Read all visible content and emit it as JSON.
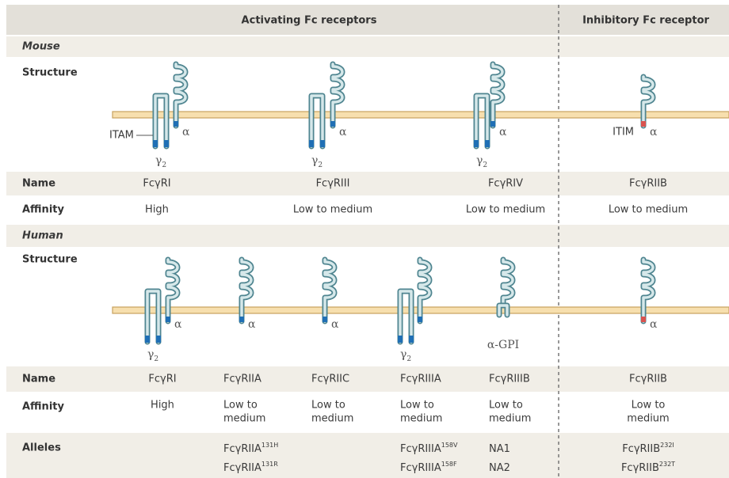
{
  "header": {
    "activating": "Activating Fc receptors",
    "inhibitory": "Inhibitory Fc receptor"
  },
  "mouse": {
    "label": "Mouse",
    "structure": "Structure",
    "name": "Name",
    "affinity": "Affinity",
    "receptors": [
      {
        "name": "FcγRI",
        "affinity": "High",
        "itam": "ITAM",
        "alpha": "α",
        "gamma": "γ",
        "gamma_sub": "2"
      },
      {
        "name": "FcγRIII",
        "affinity": "Low to medium",
        "alpha": "α",
        "gamma": "γ",
        "gamma_sub": "2"
      },
      {
        "name": "FcγRIV",
        "affinity": "Low to medium",
        "alpha": "α",
        "gamma": "γ",
        "gamma_sub": "2"
      },
      {
        "name": "FcγRIIB",
        "affinity": "Low to medium",
        "itim": "ITIM",
        "alpha": "α"
      }
    ]
  },
  "human": {
    "label": "Human",
    "structure": "Structure",
    "name": "Name",
    "affinity": "Affinity",
    "alleles": "Alleles",
    "receptors": [
      {
        "name": "FcγRI",
        "affinity": [
          "High"
        ],
        "alpha": "α",
        "gamma": "γ",
        "gamma_sub": "2"
      },
      {
        "name": "FcγRIIA",
        "affinity": [
          "Low to",
          "medium"
        ],
        "alpha": "α",
        "alleles": [
          {
            "base": "FcγRIIA",
            "sup": "131H"
          },
          {
            "base": "FcγRIIA",
            "sup": "131R"
          }
        ]
      },
      {
        "name": "FcγRIIC",
        "affinity": [
          "Low to",
          "medium"
        ],
        "alpha": "α"
      },
      {
        "name": "FcγRIIIA",
        "affinity": [
          "Low to",
          "medium"
        ],
        "gamma": "γ",
        "gamma_sub": "2",
        "alleles": [
          {
            "base": "FcγRIIIA",
            "sup": "158V"
          },
          {
            "base": "FcγRIIIA",
            "sup": "158F"
          }
        ]
      },
      {
        "name": "FcγRIIIB",
        "affinity": [
          "Low to",
          "medium"
        ],
        "alpha": "α-GPI",
        "alleles": [
          {
            "base": "NA1"
          },
          {
            "base": "NA2"
          }
        ]
      },
      {
        "name": "FcγRIIB",
        "affinity": [
          "Low to",
          "medium"
        ],
        "alpha": "α",
        "alleles": [
          {
            "base": "FcγRIIB",
            "sup": "232I"
          },
          {
            "base": "FcγRIIB",
            "sup": "232T"
          }
        ]
      }
    ]
  }
}
